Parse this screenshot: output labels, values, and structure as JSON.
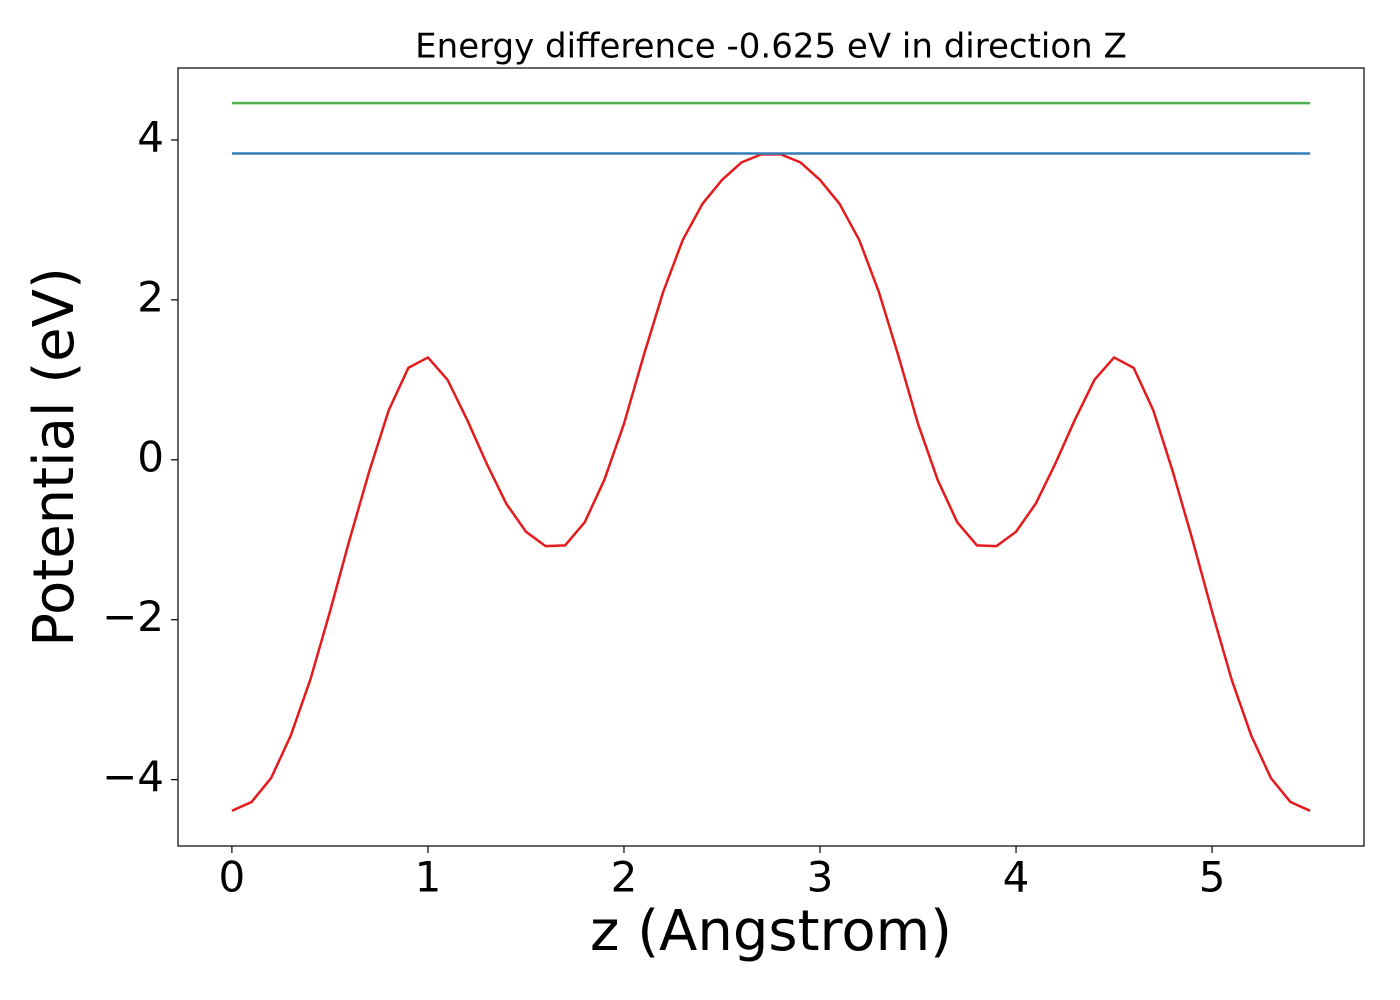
{
  "chart_data": {
    "type": "line",
    "title": "Energy difference -0.625 eV in direction Z",
    "xlabel": "z (Angstrom)",
    "ylabel": "Potential (eV)",
    "xlim": [
      -0.275,
      5.775
    ],
    "ylim": [
      -4.83,
      4.9
    ],
    "xticks": [
      0,
      1,
      2,
      3,
      4,
      5
    ],
    "yticks": [
      {
        "value": -4,
        "label": "−4"
      },
      {
        "value": -2,
        "label": "−2"
      },
      0,
      2,
      4
    ],
    "grid": false,
    "series": [
      {
        "color": "#e41a1c",
        "x": [
          0,
          0.1,
          0.2,
          0.3,
          0.4,
          0.5,
          0.6,
          0.7,
          0.8,
          0.9,
          1.0,
          1.1,
          1.2,
          1.3,
          1.4,
          1.5,
          1.6,
          1.7,
          1.8,
          1.9,
          2.0,
          2.1,
          2.2,
          2.3,
          2.4,
          2.5,
          2.6,
          2.7,
          2.8,
          2.9,
          3.0,
          3.1,
          3.2,
          3.3,
          3.4,
          3.5,
          3.6,
          3.7,
          3.8,
          3.9,
          4.0,
          4.1,
          4.2,
          4.3,
          4.4,
          4.5,
          4.6,
          4.7,
          4.8,
          4.9,
          5.0,
          5.1,
          5.2,
          5.3,
          5.4,
          5.5
        ],
        "values": [
          -4.39,
          -4.28,
          -3.98,
          -3.45,
          -2.75,
          -1.9,
          -1.0,
          -0.15,
          0.62,
          1.15,
          1.28,
          1.0,
          0.5,
          -0.05,
          -0.55,
          -0.9,
          -1.08,
          -1.07,
          -0.78,
          -0.25,
          0.45,
          1.3,
          2.1,
          2.75,
          3.2,
          3.5,
          3.72,
          3.82,
          3.82,
          3.72,
          3.5,
          3.2,
          2.75,
          2.1,
          1.3,
          0.45,
          -0.25,
          -0.78,
          -1.07,
          -1.08,
          -0.9,
          -0.55,
          -0.05,
          0.5,
          1.0,
          1.28,
          1.15,
          0.62,
          -0.15,
          -1.0,
          -1.9,
          -2.75,
          -3.45,
          -3.98,
          -4.28,
          -4.39
        ]
      },
      {
        "color": "#377eb8",
        "x": [
          0,
          5.5
        ],
        "values": [
          3.83,
          3.83
        ]
      },
      {
        "color": "#4daf4a",
        "x": [
          0,
          5.5
        ],
        "values": [
          4.46,
          4.46
        ]
      }
    ]
  }
}
